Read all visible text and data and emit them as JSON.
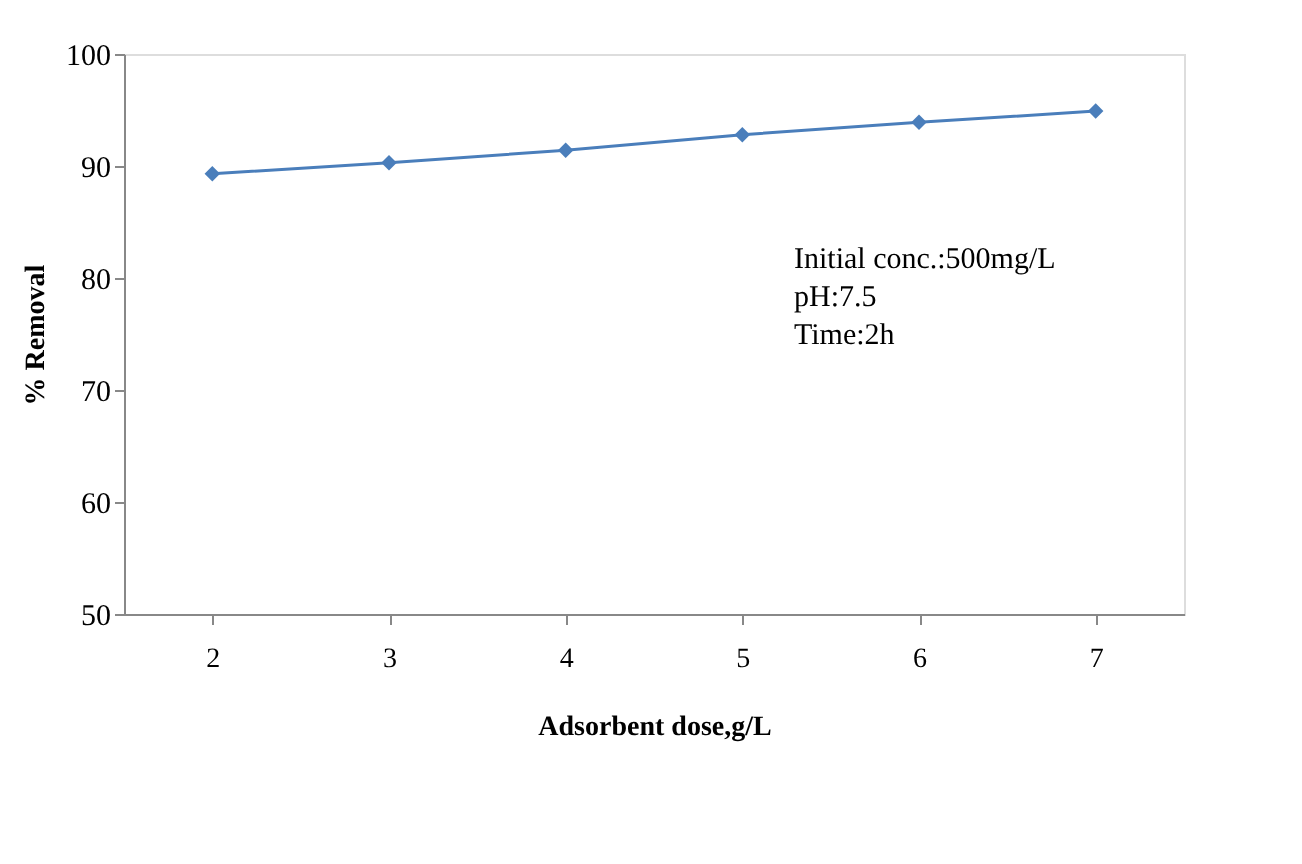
{
  "chart_data": {
    "type": "line",
    "xlabel": "Adsorbent dose,g/L",
    "ylabel": "% Removal",
    "categories": [
      "2",
      "3",
      "4",
      "5",
      "6",
      "7"
    ],
    "series": [
      {
        "color": "#4a7ebb",
        "values": [
          89.3,
          90.3,
          91.4,
          92.8,
          93.9,
          94.9
        ]
      }
    ],
    "ylim": [
      50,
      100
    ],
    "yticks": [
      50,
      60,
      70,
      80,
      90,
      100
    ],
    "grid": false,
    "marker": "diamond",
    "line_style": "solid",
    "annotations": [
      "Initial conc.:500mg/L",
      "pH:7.5",
      "Time:2h"
    ]
  }
}
